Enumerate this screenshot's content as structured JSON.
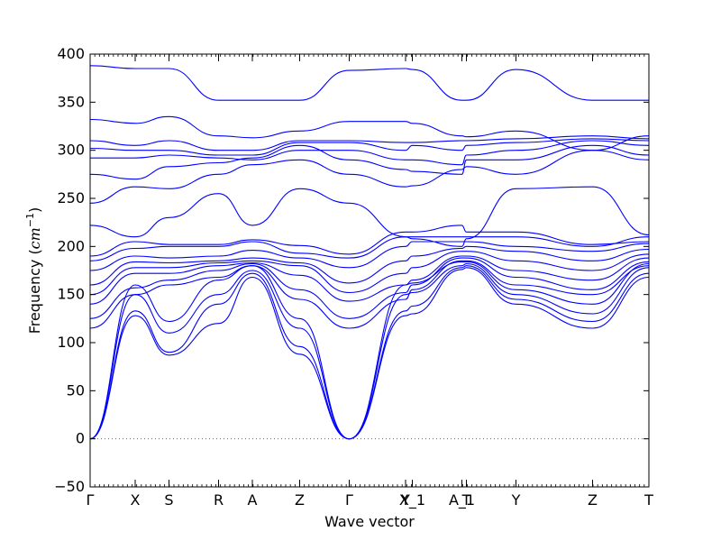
{
  "chart_data": {
    "type": "line",
    "title": "",
    "xlabel": "Wave vector",
    "ylabel": "Frequency",
    "ylabel_unit": "cm",
    "ylabel_unit_exp": "−1",
    "ylim": [
      -50,
      400
    ],
    "yticks": [
      -50,
      0,
      50,
      100,
      150,
      200,
      250,
      300,
      350,
      400
    ],
    "ytick_labels": [
      "−50",
      "0",
      "50",
      "100",
      "150",
      "200",
      "250",
      "300",
      "350",
      "400"
    ],
    "zero_line": {
      "y": 0,
      "style": "dotted"
    },
    "xlim": [
      0,
      12.4
    ],
    "x_ticks": [
      {
        "x": 0.0,
        "label": "Γ"
      },
      {
        "x": 1.0,
        "label": "X"
      },
      {
        "x": 1.75,
        "label": "S"
      },
      {
        "x": 2.85,
        "label": "R"
      },
      {
        "x": 3.6,
        "label": "A"
      },
      {
        "x": 4.65,
        "label": "Z"
      },
      {
        "x": 5.75,
        "label": "Γ"
      },
      {
        "x": 7.0,
        "label": "Y"
      },
      {
        "x": 7.15,
        "label": "X_1"
      },
      {
        "x": 8.25,
        "label": "A_1"
      },
      {
        "x": 8.35,
        "label": "T"
      },
      {
        "x": 9.45,
        "label": "Y"
      },
      {
        "x": 11.15,
        "label": "Z"
      },
      {
        "x": 12.4,
        "label": "T"
      }
    ],
    "line_color": "#0000ff",
    "series": [
      {
        "x": [
          0,
          1,
          1.75,
          2.85,
          3.6,
          4.65,
          5.75,
          7,
          7.15,
          8.25,
          8.35,
          9.45,
          11.15,
          12.4
        ],
        "values": [
          0,
          128,
          87,
          120,
          168,
          88,
          0,
          128,
          130,
          176,
          178,
          140,
          115,
          168
        ]
      },
      {
        "x": [
          0,
          1,
          1.75,
          2.85,
          3.6,
          4.65,
          5.75,
          7,
          7.15,
          8.25,
          8.35,
          9.45,
          11.15,
          12.4
        ],
        "values": [
          0,
          133,
          90,
          140,
          172,
          96,
          0,
          133,
          138,
          178,
          180,
          145,
          122,
          172
        ]
      },
      {
        "x": [
          0,
          1,
          1.75,
          2.85,
          3.6,
          4.65,
          5.75,
          7,
          7.15,
          8.25,
          8.35,
          9.45,
          11.15,
          12.4
        ],
        "values": [
          0,
          150,
          110,
          150,
          175,
          115,
          0,
          150,
          152,
          180,
          182,
          150,
          130,
          178
        ]
      },
      {
        "x": [
          0,
          1,
          1.75,
          2.85,
          3.6,
          4.65,
          5.75,
          7,
          7.15,
          8.25,
          8.35,
          9.45,
          11.15,
          12.4
        ],
        "values": [
          0,
          160,
          122,
          165,
          180,
          125,
          0,
          160,
          162,
          184,
          184,
          155,
          140,
          182
        ]
      },
      {
        "x": [
          0,
          1,
          1.75,
          2.85,
          3.6,
          4.65,
          5.75,
          7,
          7.15,
          8.25,
          8.35,
          9.45,
          11.15,
          12.4
        ],
        "values": [
          115,
          150,
          160,
          168,
          180,
          145,
          115,
          145,
          155,
          185,
          185,
          160,
          150,
          180
        ]
      },
      {
        "x": [
          0,
          1,
          1.75,
          2.85,
          3.6,
          4.65,
          5.75,
          7,
          7.15,
          8.25,
          8.35,
          9.45,
          11.15,
          12.4
        ],
        "values": [
          125,
          157,
          165,
          175,
          182,
          155,
          125,
          152,
          160,
          188,
          188,
          168,
          155,
          184
        ]
      },
      {
        "x": [
          0,
          1,
          1.75,
          2.85,
          3.6,
          4.65,
          5.75,
          7,
          7.15,
          8.25,
          8.35,
          9.45,
          11.15,
          12.4
        ],
        "values": [
          140,
          172,
          172,
          180,
          183,
          170,
          143,
          160,
          165,
          190,
          190,
          175,
          165,
          188
        ]
      },
      {
        "x": [
          0,
          1,
          1.75,
          2.85,
          3.6,
          4.65,
          5.75,
          7,
          7.15,
          8.25,
          8.35,
          9.45,
          11.15,
          12.4
        ],
        "values": [
          150,
          178,
          178,
          183,
          185,
          180,
          152,
          172,
          178,
          195,
          195,
          185,
          175,
          192
        ]
      },
      {
        "x": [
          0,
          1,
          1.75,
          2.85,
          3.6,
          4.65,
          5.75,
          7,
          7.15,
          8.25,
          8.35,
          9.45,
          11.15,
          12.4
        ],
        "values": [
          160,
          184,
          183,
          185,
          188,
          183,
          162,
          185,
          190,
          198,
          200,
          195,
          185,
          197
        ]
      },
      {
        "x": [
          0,
          1,
          1.75,
          2.85,
          3.6,
          4.65,
          5.75,
          7,
          7.15,
          8.25,
          8.35,
          9.45,
          11.15,
          12.4
        ],
        "values": [
          175,
          190,
          188,
          190,
          196,
          188,
          178,
          200,
          205,
          205,
          205,
          200,
          195,
          203
        ]
      },
      {
        "x": [
          0,
          1,
          1.75,
          2.85,
          3.6,
          4.65,
          5.75,
          7,
          7.15,
          8.25,
          8.35,
          9.45,
          11.15,
          12.4
        ],
        "values": [
          185,
          198,
          200,
          200,
          205,
          193,
          188,
          210,
          210,
          210,
          210,
          210,
          200,
          210
        ]
      },
      {
        "x": [
          0,
          1,
          1.75,
          2.85,
          3.6,
          4.65,
          5.75,
          7,
          7.15,
          8.25,
          8.35,
          9.45,
          11.15,
          12.4
        ],
        "values": [
          190,
          205,
          202,
          202,
          207,
          201,
          192,
          215,
          215,
          222,
          215,
          215,
          202,
          205
        ]
      },
      {
        "x": [
          0,
          1,
          1.75,
          2.85,
          3.6,
          4.65,
          5.75,
          7,
          7.15,
          8.25,
          8.35,
          9.45,
          11.15,
          12.4
        ],
        "values": [
          222,
          210,
          230,
          255,
          222,
          260,
          245,
          210,
          208,
          200,
          208,
          260,
          262,
          212
        ]
      },
      {
        "x": [
          0,
          1,
          1.75,
          2.85,
          3.6,
          4.65,
          5.75,
          7,
          7.15,
          8.25,
          8.35,
          9.45,
          11.15,
          12.4
        ],
        "values": [
          245,
          262,
          260,
          275,
          285,
          290,
          275,
          262,
          263,
          280,
          283,
          275,
          300,
          290
        ]
      },
      {
        "x": [
          0,
          1,
          1.75,
          2.85,
          3.6,
          4.65,
          5.75,
          7,
          7.15,
          8.25,
          8.35,
          9.45,
          11.15,
          12.4
        ],
        "values": [
          275,
          270,
          283,
          287,
          292,
          305,
          290,
          280,
          278,
          275,
          290,
          290,
          305,
          295
        ]
      },
      {
        "x": [
          0,
          1,
          1.75,
          2.85,
          3.6,
          4.65,
          5.75,
          7,
          7.15,
          8.25,
          8.35,
          9.45,
          11.15,
          12.4
        ],
        "values": [
          292,
          292,
          295,
          292,
          290,
          300,
          300,
          290,
          290,
          285,
          295,
          300,
          310,
          305
        ]
      },
      {
        "x": [
          0,
          1,
          1.75,
          2.85,
          3.6,
          4.65,
          5.75,
          7,
          7.15,
          8.25,
          8.35,
          9.45,
          11.15,
          12.4
        ],
        "values": [
          302,
          300,
          300,
          295,
          295,
          308,
          308,
          300,
          305,
          300,
          305,
          308,
          312,
          310
        ]
      },
      {
        "x": [
          0,
          1,
          1.75,
          2.85,
          3.6,
          4.65,
          5.75,
          7,
          7.15,
          8.25,
          8.35,
          9.45,
          11.15,
          12.4
        ],
        "values": [
          310,
          305,
          310,
          300,
          300,
          310,
          310,
          308,
          308,
          310,
          310,
          312,
          315,
          312
        ]
      },
      {
        "x": [
          0,
          1,
          1.75,
          2.85,
          3.6,
          4.65,
          5.75,
          7,
          7.15,
          8.25,
          8.35,
          9.45,
          11.15,
          12.4
        ],
        "values": [
          332,
          328,
          335,
          315,
          313,
          320,
          330,
          330,
          328,
          315,
          314,
          320,
          300,
          315
        ]
      },
      {
        "x": [
          0,
          1,
          1.75,
          2.85,
          3.6,
          4.65,
          5.75,
          7,
          7.15,
          8.25,
          8.35,
          9.45,
          11.15,
          12.4
        ],
        "values": [
          388,
          385,
          385,
          352,
          352,
          352,
          383,
          385,
          384,
          352,
          352,
          384,
          352,
          352
        ]
      }
    ]
  }
}
